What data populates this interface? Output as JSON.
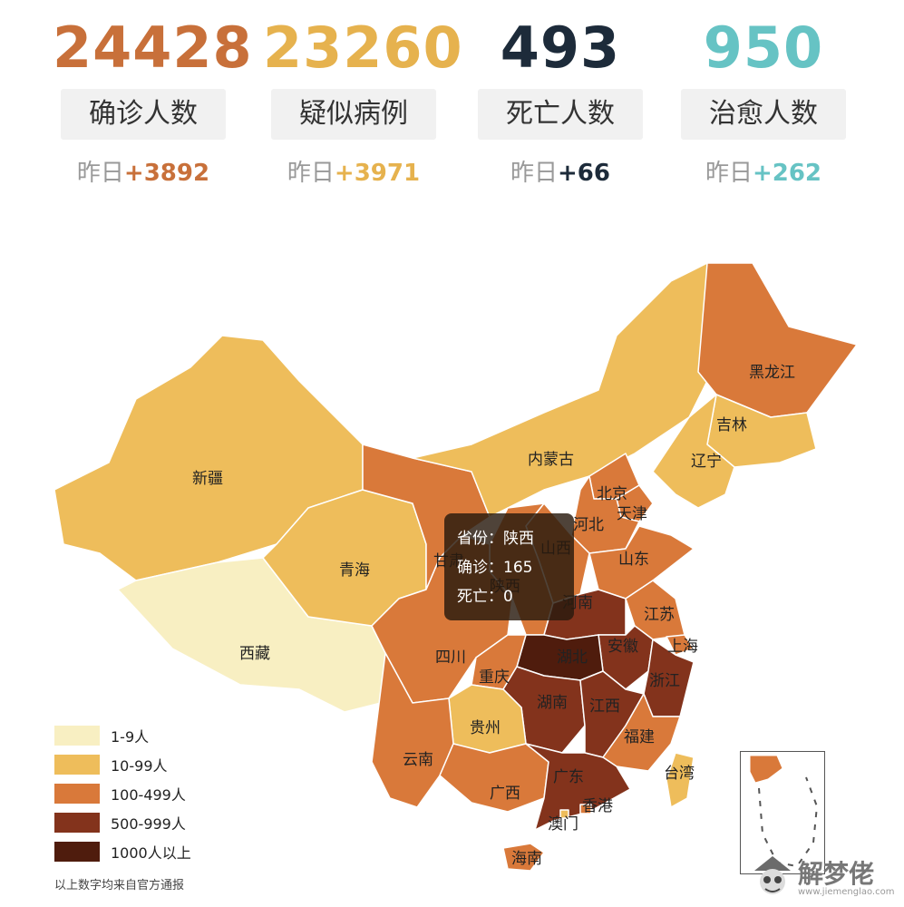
{
  "stats": [
    {
      "value": "24428",
      "label": "确诊人数",
      "delta_prefix": "昨日",
      "delta": "+3892",
      "color": "#c8703a",
      "delta_color": "#c8703a"
    },
    {
      "value": "23260",
      "label": "疑似病例",
      "delta_prefix": "昨日",
      "delta": "+3971",
      "color": "#e6b24e",
      "delta_color": "#e6b24e"
    },
    {
      "value": "493",
      "label": "死亡人数",
      "delta_prefix": "昨日",
      "delta": "+66",
      "color": "#1d2b3a",
      "delta_color": "#1d2b3a"
    },
    {
      "value": "950",
      "label": "治愈人数",
      "delta_prefix": "昨日",
      "delta": "+262",
      "color": "#66c3c4",
      "delta_color": "#66c3c4"
    }
  ],
  "colors": {
    "level1": "#f8efc2",
    "level2": "#eebd5b",
    "level3": "#d9793a",
    "level4": "#83331c",
    "level5": "#4f1c0d"
  },
  "provinces": [
    {
      "name": "新疆",
      "level": 2
    },
    {
      "name": "西藏",
      "level": 1
    },
    {
      "name": "青海",
      "level": 2
    },
    {
      "name": "甘肃",
      "level": 3
    },
    {
      "name": "内蒙古",
      "level": 2
    },
    {
      "name": "黑龙江",
      "level": 3
    },
    {
      "name": "吉林",
      "level": 2
    },
    {
      "name": "辽宁",
      "level": 2
    },
    {
      "name": "北京",
      "level": 3
    },
    {
      "name": "天津",
      "level": 3
    },
    {
      "name": "河北",
      "level": 3
    },
    {
      "name": "山西",
      "level": 3
    },
    {
      "name": "陕西",
      "level": 3
    },
    {
      "name": "山东",
      "level": 3
    },
    {
      "name": "河南",
      "level": 4
    },
    {
      "name": "江苏",
      "level": 3
    },
    {
      "name": "安徽",
      "level": 4
    },
    {
      "name": "上海",
      "level": 3
    },
    {
      "name": "湖北",
      "level": 5
    },
    {
      "name": "浙江",
      "level": 4
    },
    {
      "name": "四川",
      "level": 3
    },
    {
      "name": "重庆",
      "level": 3
    },
    {
      "name": "湖南",
      "level": 4
    },
    {
      "name": "江西",
      "level": 4
    },
    {
      "name": "贵州",
      "level": 2
    },
    {
      "name": "福建",
      "level": 3
    },
    {
      "name": "云南",
      "level": 3
    },
    {
      "name": "广西",
      "level": 3
    },
    {
      "name": "广东",
      "level": 4
    },
    {
      "name": "台湾",
      "level": 2
    },
    {
      "name": "澳门",
      "level": 2
    },
    {
      "name": "香港",
      "level": 3
    },
    {
      "name": "海南",
      "level": 3
    }
  ],
  "tooltip": {
    "province": "省份：陕西",
    "confirmed": "确诊：165",
    "death": "死亡：0"
  },
  "legend": [
    {
      "label": "1-9人",
      "level": 1
    },
    {
      "label": "10-99人",
      "level": 2
    },
    {
      "label": "100-499人",
      "level": 3
    },
    {
      "label": "500-999人",
      "level": 4
    },
    {
      "label": "1000人以上",
      "level": 5
    }
  ],
  "note": "以上数字均来自官方通报",
  "watermark": {
    "brand": "解梦佬",
    "url": "www.jiemenglao.com"
  }
}
